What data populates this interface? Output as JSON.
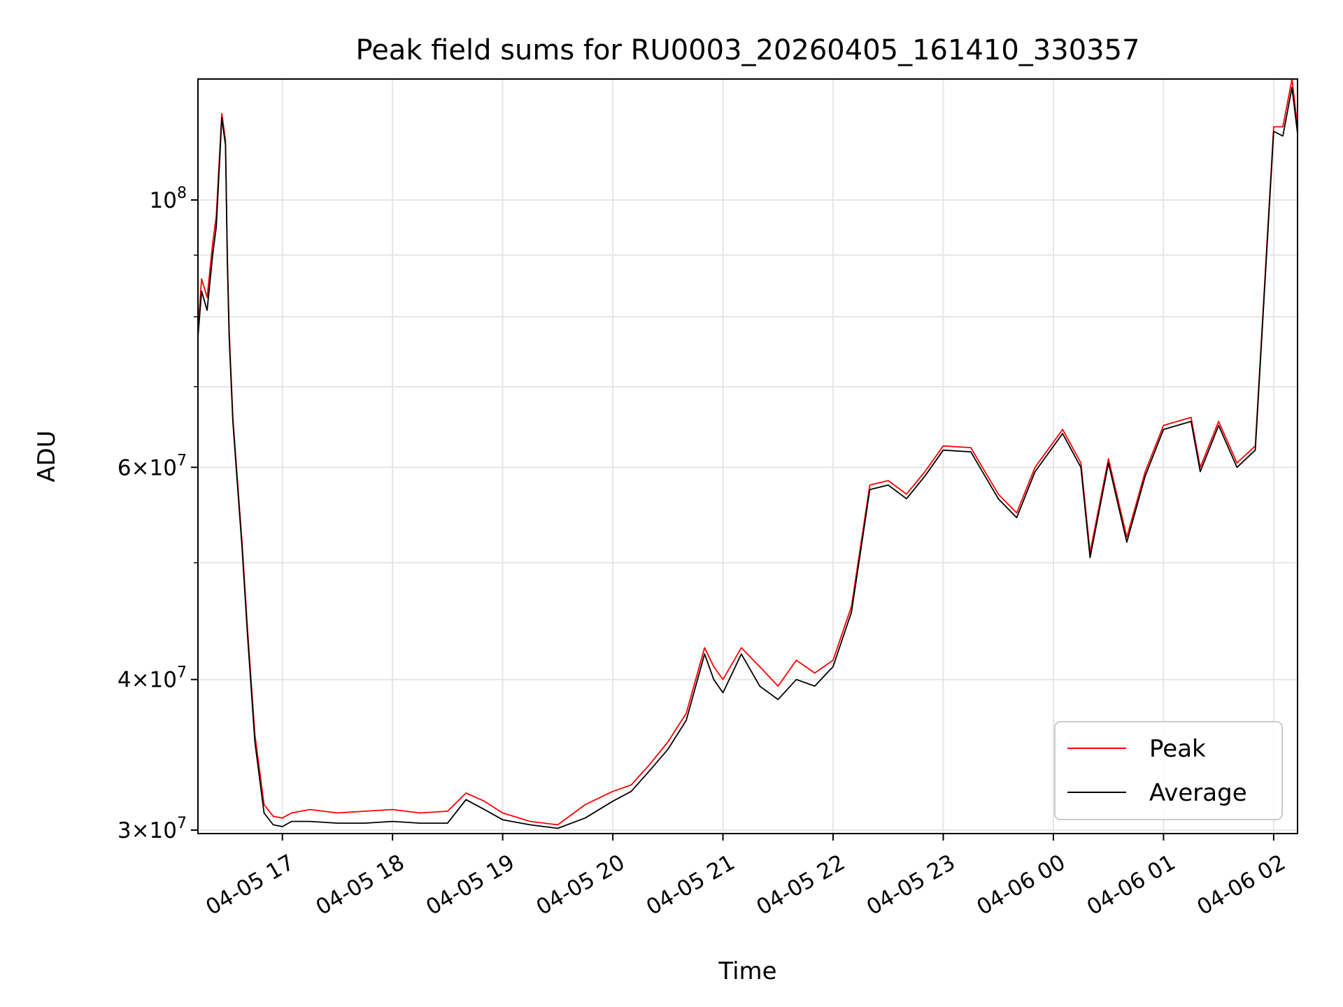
{
  "chart_data": {
    "type": "line",
    "title": "Peak field sums for RU0003_20260405_161410_330357",
    "xlabel": "Time",
    "ylabel": "ADU",
    "y_scale": "log",
    "grid": true,
    "legend_position": "lower right",
    "xlim": [
      "2026-04-05 16:14",
      "2026-04-06 02:13"
    ],
    "ylim": [
      29800000,
      126000000
    ],
    "x_ticks": [
      {
        "value": "2026-04-05 17:00",
        "label": "04-05 17"
      },
      {
        "value": "2026-04-05 18:00",
        "label": "04-05 18"
      },
      {
        "value": "2026-04-05 19:00",
        "label": "04-05 19"
      },
      {
        "value": "2026-04-05 20:00",
        "label": "04-05 20"
      },
      {
        "value": "2026-04-05 21:00",
        "label": "04-05 21"
      },
      {
        "value": "2026-04-05 22:00",
        "label": "04-05 22"
      },
      {
        "value": "2026-04-05 23:00",
        "label": "04-05 23"
      },
      {
        "value": "2026-04-06 00:00",
        "label": "04-06 00"
      },
      {
        "value": "2026-04-06 01:00",
        "label": "04-06 01"
      },
      {
        "value": "2026-04-06 02:00",
        "label": "04-06 02"
      }
    ],
    "y_ticks_major": [
      {
        "value": 30000000,
        "mantissa": "3",
        "exp": "7"
      },
      {
        "value": 40000000,
        "mantissa": "4",
        "exp": "7"
      },
      {
        "value": 60000000,
        "mantissa": "6",
        "exp": "7"
      },
      {
        "value": 100000000,
        "mantissa": "",
        "exp": "8"
      }
    ],
    "y_ticks_minor": [
      50000000,
      70000000,
      80000000,
      90000000
    ],
    "series": [
      {
        "name": "Peak",
        "color": "#ff0000",
        "x": [
          "2026-04-05 16:14",
          "2026-04-05 16:16",
          "2026-04-05 16:19",
          "2026-04-05 16:22",
          "2026-04-05 16:24",
          "2026-04-05 16:27",
          "2026-04-05 16:29",
          "2026-04-05 16:30",
          "2026-04-05 16:31",
          "2026-04-05 16:33",
          "2026-04-05 16:35",
          "2026-04-05 16:38",
          "2026-04-05 16:41",
          "2026-04-05 16:45",
          "2026-04-05 16:50",
          "2026-04-05 16:55",
          "2026-04-05 17:00",
          "2026-04-05 17:05",
          "2026-04-05 17:15",
          "2026-04-05 17:30",
          "2026-04-05 17:45",
          "2026-04-05 18:00",
          "2026-04-05 18:15",
          "2026-04-05 18:30",
          "2026-04-05 18:40",
          "2026-04-05 18:50",
          "2026-04-05 19:00",
          "2026-04-05 19:15",
          "2026-04-05 19:30",
          "2026-04-05 19:45",
          "2026-04-05 20:00",
          "2026-04-05 20:10",
          "2026-04-05 20:20",
          "2026-04-05 20:30",
          "2026-04-05 20:40",
          "2026-04-05 20:50",
          "2026-04-05 20:55",
          "2026-04-05 21:00",
          "2026-04-05 21:10",
          "2026-04-05 21:20",
          "2026-04-05 21:30",
          "2026-04-05 21:40",
          "2026-04-05 21:50",
          "2026-04-05 22:00",
          "2026-04-05 22:10",
          "2026-04-05 22:20",
          "2026-04-05 22:30",
          "2026-04-05 22:40",
          "2026-04-05 22:50",
          "2026-04-05 23:00",
          "2026-04-05 23:15",
          "2026-04-05 23:30",
          "2026-04-05 23:40",
          "2026-04-05 23:50",
          "2026-04-06 00:05",
          "2026-04-06 00:15",
          "2026-04-06 00:20",
          "2026-04-06 00:30",
          "2026-04-06 00:40",
          "2026-04-06 00:50",
          "2026-04-06 01:00",
          "2026-04-06 01:15",
          "2026-04-06 01:20",
          "2026-04-06 01:30",
          "2026-04-06 01:40",
          "2026-04-06 01:50",
          "2026-04-06 02:00",
          "2026-04-06 02:05",
          "2026-04-06 02:10",
          "2026-04-06 02:13"
        ],
        "y": [
          78000000,
          86000000,
          83000000,
          92000000,
          97000000,
          118000000,
          112000000,
          90000000,
          78000000,
          66000000,
          60000000,
          52000000,
          44000000,
          36000000,
          31500000,
          30800000,
          30700000,
          31000000,
          31200000,
          31000000,
          31100000,
          31200000,
          31000000,
          31100000,
          32200000,
          31700000,
          31000000,
          30500000,
          30300000,
          31500000,
          32300000,
          32700000,
          34000000,
          35500000,
          37500000,
          42500000,
          41000000,
          40000000,
          42500000,
          41000000,
          39500000,
          41500000,
          40500000,
          41500000,
          46000000,
          58000000,
          58500000,
          57000000,
          59500000,
          62500000,
          62300000,
          57000000,
          55000000,
          60000000,
          64500000,
          60500000,
          51000000,
          61000000,
          52500000,
          59500000,
          65000000,
          66000000,
          60000000,
          65500000,
          60500000,
          62500000,
          115000000,
          115000000,
          126000000,
          115000000
        ]
      },
      {
        "name": "Average",
        "color": "#000000",
        "x": [
          "2026-04-05 16:14",
          "2026-04-05 16:16",
          "2026-04-05 16:19",
          "2026-04-05 16:22",
          "2026-04-05 16:24",
          "2026-04-05 16:27",
          "2026-04-05 16:29",
          "2026-04-05 16:30",
          "2026-04-05 16:31",
          "2026-04-05 16:33",
          "2026-04-05 16:35",
          "2026-04-05 16:38",
          "2026-04-05 16:41",
          "2026-04-05 16:45",
          "2026-04-05 16:50",
          "2026-04-05 16:55",
          "2026-04-05 17:00",
          "2026-04-05 17:05",
          "2026-04-05 17:15",
          "2026-04-05 17:30",
          "2026-04-05 17:45",
          "2026-04-05 18:00",
          "2026-04-05 18:15",
          "2026-04-05 18:30",
          "2026-04-05 18:40",
          "2026-04-05 18:50",
          "2026-04-05 19:00",
          "2026-04-05 19:15",
          "2026-04-05 19:30",
          "2026-04-05 19:45",
          "2026-04-05 20:00",
          "2026-04-05 20:10",
          "2026-04-05 20:20",
          "2026-04-05 20:30",
          "2026-04-05 20:40",
          "2026-04-05 20:50",
          "2026-04-05 20:55",
          "2026-04-05 21:00",
          "2026-04-05 21:10",
          "2026-04-05 21:20",
          "2026-04-05 21:30",
          "2026-04-05 21:40",
          "2026-04-05 21:50",
          "2026-04-05 22:00",
          "2026-04-05 22:10",
          "2026-04-05 22:20",
          "2026-04-05 22:30",
          "2026-04-05 22:40",
          "2026-04-05 22:50",
          "2026-04-05 23:00",
          "2026-04-05 23:15",
          "2026-04-05 23:30",
          "2026-04-05 23:40",
          "2026-04-05 23:50",
          "2026-04-06 00:05",
          "2026-04-06 00:15",
          "2026-04-06 00:20",
          "2026-04-06 00:30",
          "2026-04-06 00:40",
          "2026-04-06 00:50",
          "2026-04-06 01:00",
          "2026-04-06 01:15",
          "2026-04-06 01:20",
          "2026-04-06 01:30",
          "2026-04-06 01:40",
          "2026-04-06 01:50",
          "2026-04-06 02:00",
          "2026-04-06 02:05",
          "2026-04-06 02:10",
          "2026-04-06 02:13"
        ],
        "y": [
          77000000,
          84000000,
          81000000,
          90000000,
          95000000,
          117000000,
          111000000,
          89000000,
          77000000,
          65500000,
          59500000,
          51500000,
          43500000,
          35500000,
          31000000,
          30300000,
          30200000,
          30500000,
          30500000,
          30400000,
          30400000,
          30500000,
          30400000,
          30400000,
          31800000,
          31200000,
          30600000,
          30300000,
          30100000,
          30700000,
          31700000,
          32300000,
          33600000,
          35000000,
          37000000,
          42000000,
          40000000,
          39000000,
          42000000,
          39500000,
          38500000,
          40000000,
          39500000,
          41000000,
          45500000,
          57500000,
          58000000,
          56500000,
          59000000,
          62000000,
          61800000,
          56500000,
          54500000,
          59500000,
          64000000,
          60000000,
          50500000,
          60500000,
          52000000,
          59000000,
          64500000,
          65500000,
          59500000,
          65000000,
          60000000,
          62000000,
          114000000,
          113000000,
          124000000,
          113500000
        ]
      }
    ]
  }
}
